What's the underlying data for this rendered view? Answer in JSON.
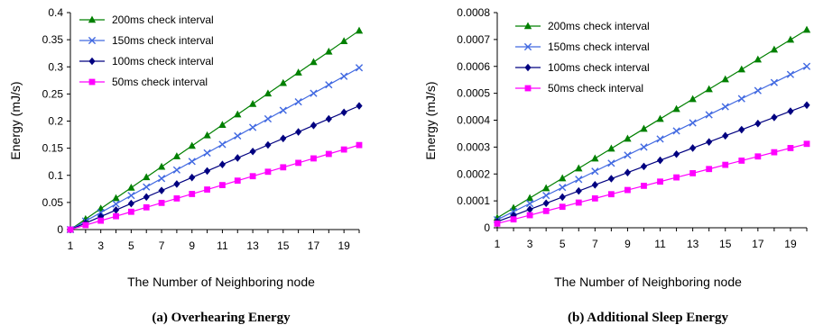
{
  "chart_data": [
    {
      "type": "line",
      "caption": "(a) Overhearing Energy",
      "xlabel": "The Number of Neighboring node",
      "ylabel": "Energy (mJ/s)",
      "xlim": [
        1,
        20
      ],
      "ylim": [
        0,
        0.4
      ],
      "x_ticks": [
        "1",
        "3",
        "5",
        "7",
        "9",
        "11",
        "13",
        "15",
        "17",
        "19"
      ],
      "y_ticks": [
        "0",
        "0.05",
        "0.1",
        "0.15",
        "0.2",
        "0.25",
        "0.3",
        "0.35",
        "0.4"
      ],
      "x": [
        1,
        2,
        3,
        4,
        5,
        6,
        7,
        8,
        9,
        10,
        11,
        12,
        13,
        14,
        15,
        16,
        17,
        18,
        19,
        20
      ],
      "legend_position": "top-left",
      "series": [
        {
          "name": "200ms check interval",
          "color": "#008000",
          "marker": "triangle",
          "values": [
            0,
            0.0193,
            0.0386,
            0.0579,
            0.0772,
            0.0965,
            0.1158,
            0.1351,
            0.1544,
            0.1737,
            0.193,
            0.2123,
            0.2316,
            0.2509,
            0.2702,
            0.2895,
            0.3088,
            0.3281,
            0.3474,
            0.3667
          ]
        },
        {
          "name": "150ms check interval",
          "color": "#4169E1",
          "marker": "x",
          "values": [
            0,
            0.0157,
            0.0314,
            0.0471,
            0.0628,
            0.0785,
            0.0942,
            0.1099,
            0.1256,
            0.1413,
            0.157,
            0.1727,
            0.1884,
            0.2041,
            0.2198,
            0.2355,
            0.2512,
            0.2669,
            0.2826,
            0.2983
          ]
        },
        {
          "name": "100ms check interval",
          "color": "#000080",
          "marker": "diamond",
          "values": [
            0,
            0.012,
            0.024,
            0.036,
            0.048,
            0.06,
            0.072,
            0.084,
            0.096,
            0.108,
            0.12,
            0.132,
            0.144,
            0.156,
            0.168,
            0.18,
            0.192,
            0.204,
            0.216,
            0.228
          ]
        },
        {
          "name": "50ms check interval",
          "color": "#FF00FF",
          "marker": "square",
          "values": [
            0,
            0.0082,
            0.0164,
            0.0246,
            0.0328,
            0.041,
            0.0492,
            0.0574,
            0.0656,
            0.0738,
            0.082,
            0.0902,
            0.0984,
            0.1066,
            0.1148,
            0.123,
            0.1312,
            0.1394,
            0.1476,
            0.1558
          ]
        }
      ]
    },
    {
      "type": "line",
      "caption": "(b) Additional Sleep Energy",
      "xlabel": "The Number of Neighboring node",
      "ylabel": "Energy (mJ/s)",
      "xlim": [
        1,
        20
      ],
      "ylim": [
        0,
        0.0008
      ],
      "x_ticks": [
        "1",
        "3",
        "5",
        "7",
        "9",
        "11",
        "13",
        "15",
        "17",
        "19"
      ],
      "y_ticks": [
        "0",
        "0.0001",
        "0.0002",
        "0.0003",
        "0.0004",
        "0.0005",
        "0.0006",
        "0.0007",
        "0.0008"
      ],
      "x": [
        1,
        2,
        3,
        4,
        5,
        6,
        7,
        8,
        9,
        10,
        11,
        12,
        13,
        14,
        15,
        16,
        17,
        18,
        19,
        20
      ],
      "legend_position": "top-left",
      "series": [
        {
          "name": "200ms check interval",
          "color": "#008000",
          "marker": "triangle",
          "values": [
            3.68e-05,
            7.36e-05,
            0.0001104,
            0.0001472,
            0.000184,
            0.0002208,
            0.0002576,
            0.0002944,
            0.0003312,
            0.000368,
            0.0004048,
            0.0004416,
            0.0004784,
            0.0005152,
            0.000552,
            0.0005888,
            0.0006256,
            0.0006624,
            0.0006992,
            0.000736
          ]
        },
        {
          "name": "150ms check interval",
          "color": "#4169E1",
          "marker": "x",
          "values": [
            3e-05,
            6e-05,
            9e-05,
            0.00012,
            0.00015,
            0.00018,
            0.00021,
            0.00024,
            0.00027,
            0.0003,
            0.00033,
            0.00036,
            0.00039,
            0.00042,
            0.00045,
            0.00048,
            0.00051,
            0.00054,
            0.00057,
            0.0006
          ]
        },
        {
          "name": "100ms check interval",
          "color": "#000080",
          "marker": "diamond",
          "values": [
            2.28e-05,
            4.56e-05,
            6.84e-05,
            9.12e-05,
            0.000114,
            0.0001368,
            0.0001596,
            0.0001824,
            0.0002052,
            0.000228,
            0.0002508,
            0.0002736,
            0.0002964,
            0.0003192,
            0.000342,
            0.0003648,
            0.0003876,
            0.0004104,
            0.0004332,
            0.000456
          ]
        },
        {
          "name": "50ms check interval",
          "color": "#FF00FF",
          "marker": "square",
          "values": [
            1.56e-05,
            3.12e-05,
            4.68e-05,
            6.24e-05,
            7.8e-05,
            9.36e-05,
            0.0001092,
            0.0001248,
            0.0001404,
            0.000156,
            0.0001716,
            0.0001872,
            0.0002028,
            0.0002184,
            0.000234,
            0.0002496,
            0.0002652,
            0.0002808,
            0.0002964,
            0.000312
          ]
        }
      ]
    }
  ]
}
